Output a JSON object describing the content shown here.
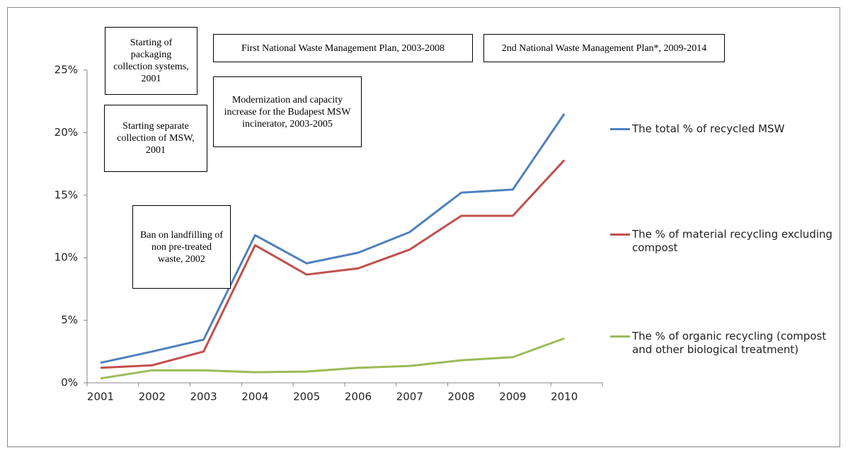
{
  "chart_data": {
    "type": "line",
    "categories": [
      "2001",
      "2002",
      "2003",
      "2004",
      "2005",
      "2006",
      "2007",
      "2008",
      "2009",
      "2010"
    ],
    "series": [
      {
        "name": "The total % of recycled MSW",
        "color": "#4f81bd",
        "values": [
          1.6,
          2.5,
          3.45,
          11.8,
          9.55,
          10.4,
          12.05,
          15.2,
          15.45,
          21.5
        ]
      },
      {
        "name": "The % of material recycling excluding compost",
        "color": "#c0504d",
        "values": [
          1.2,
          1.4,
          2.5,
          11.0,
          8.65,
          9.15,
          10.65,
          13.35,
          13.35,
          17.8
        ]
      },
      {
        "name": "The % of organic recycling (compost and other biological treatment)",
        "color": "#9bbb59",
        "values": [
          0.35,
          1.0,
          1.0,
          0.85,
          0.9,
          1.2,
          1.35,
          1.8,
          2.05,
          3.55
        ]
      }
    ],
    "ylim": [
      0,
      25
    ],
    "yticks": [
      {
        "value": 0,
        "label": "0%"
      },
      {
        "value": 5,
        "label": "5%"
      },
      {
        "value": 10,
        "label": "10%"
      },
      {
        "value": 15,
        "label": "15%"
      },
      {
        "value": 20,
        "label": "20%"
      },
      {
        "value": 25,
        "label": "25%"
      }
    ],
    "grid": false,
    "legend": "right",
    "annotations": [
      "Starting of packaging collection systems, 2001",
      "Starting separate collection of MSW, 2001",
      "First National Waste Management Plan, 2003-2008",
      "2nd National Waste Management Plan*, 2009-2014",
      "Modernization and capacity increase for the Budapest MSW incinerator, 2003-2005",
      "Ban on landfilling of non pre-treated waste, 2002"
    ]
  }
}
